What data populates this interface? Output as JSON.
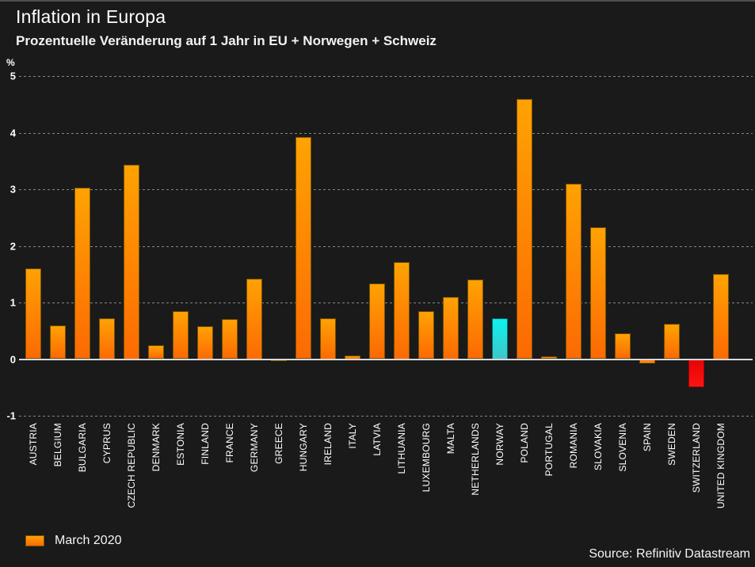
{
  "header": {
    "title": "Inflation in Europa",
    "subtitle": "Prozentuelle Veränderung auf 1 Jahr in EU + Norwegen + Schweiz"
  },
  "chart_data": {
    "type": "bar",
    "title": "Inflation in Europa",
    "subtitle": "Prozentuelle Veränderung auf 1 Jahr in EU + Norwegen + Schweiz",
    "unit_label": "%",
    "categories": [
      "AUSTRIA",
      "BELGIUM",
      "BULGARIA",
      "CYPRUS",
      "CZECH REPUBLIC",
      "DENMARK",
      "ESTONIA",
      "FINLAND",
      "FRANCE",
      "GERMANY",
      "GREECE",
      "HUNGARY",
      "IRELAND",
      "ITALY",
      "LATVIA",
      "LITHUANIA",
      "LUXEMBOURG",
      "MALTA",
      "NETHERLANDS",
      "NORWAY",
      "POLAND",
      "PORTUGAL",
      "ROMANIA",
      "SLOVAKIA",
      "SLOVENIA",
      "SPAIN",
      "SWEDEN",
      "SWITZERLAND",
      "UNITED KINGDOM"
    ],
    "series": [
      {
        "name": "March 2020",
        "values": [
          1.6,
          0.6,
          3.03,
          0.72,
          3.44,
          0.25,
          0.85,
          0.58,
          0.7,
          1.42,
          -0.02,
          3.92,
          0.72,
          0.07,
          1.34,
          1.72,
          0.85,
          1.1,
          1.4,
          0.72,
          4.6,
          0.05,
          3.1,
          2.33,
          0.45,
          -0.08,
          0.62,
          -0.5,
          1.5
        ]
      }
    ],
    "point_styles": [
      "orange",
      "orange",
      "orange",
      "orange",
      "orange",
      "orange",
      "orange",
      "orange",
      "orange",
      "orange",
      "orange",
      "orange",
      "orange",
      "orange",
      "orange",
      "orange",
      "orange",
      "orange",
      "orange",
      "cyan",
      "orange",
      "orange",
      "orange",
      "orange",
      "orange",
      "orange",
      "orange",
      "red",
      "orange"
    ],
    "palette": {
      "orange": {
        "top": "#ffa203",
        "bottom": "#fc6a03",
        "border": "#7a5200"
      },
      "cyan": {
        "top": "#0cf2ee",
        "bottom": "#3fc6c8",
        "border": "#0a6e6e"
      },
      "red": {
        "top": "#fa1414",
        "bottom": "#e60404",
        "border": "#a30000"
      }
    },
    "yticks": [
      5,
      4,
      3,
      2,
      1,
      0,
      -1
    ],
    "ylim": [
      -1,
      5
    ],
    "grid": "horizontal dashed",
    "legend_position": "bottom-left"
  },
  "legend": {
    "label": "March 2020"
  },
  "footer": {
    "source": "Source: Refinitiv Datastream"
  },
  "colors": {
    "background": "#1a1a1a",
    "text": "#ffffff",
    "grid": "#868686",
    "axis_line": "#d8d8d8"
  }
}
